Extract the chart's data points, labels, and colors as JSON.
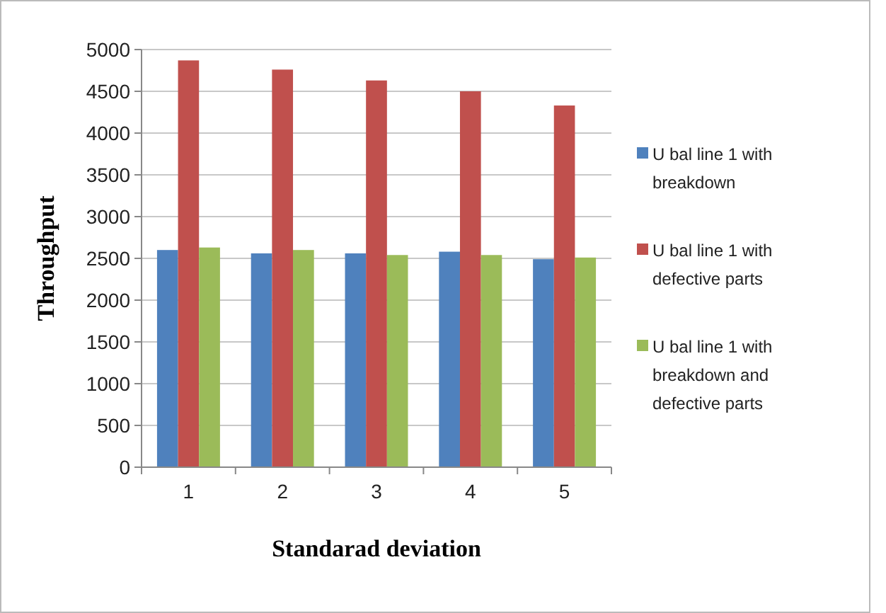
{
  "chart_data": {
    "type": "bar",
    "xlabel": "Standarad deviation",
    "ylabel": "Throughput",
    "categories": [
      "1",
      "2",
      "3",
      "4",
      "5"
    ],
    "series": [
      {
        "name": "U bal line 1 with breakdown",
        "color": "#4f81bd",
        "values": [
          2600,
          2560,
          2560,
          2580,
          2490
        ]
      },
      {
        "name": "U bal line 1 with defective parts",
        "color": "#c0504d",
        "values": [
          4870,
          4760,
          4630,
          4500,
          4330
        ]
      },
      {
        "name": "U bal line 1 with breakdown and defective parts",
        "color": "#9bbb59",
        "values": [
          2630,
          2600,
          2540,
          2540,
          2510
        ]
      }
    ],
    "ylim": [
      0,
      5000
    ],
    "yticks": [
      0,
      500,
      1000,
      1500,
      2000,
      2500,
      3000,
      3500,
      4000,
      4500,
      5000
    ],
    "grid": "y",
    "legend": "right"
  }
}
